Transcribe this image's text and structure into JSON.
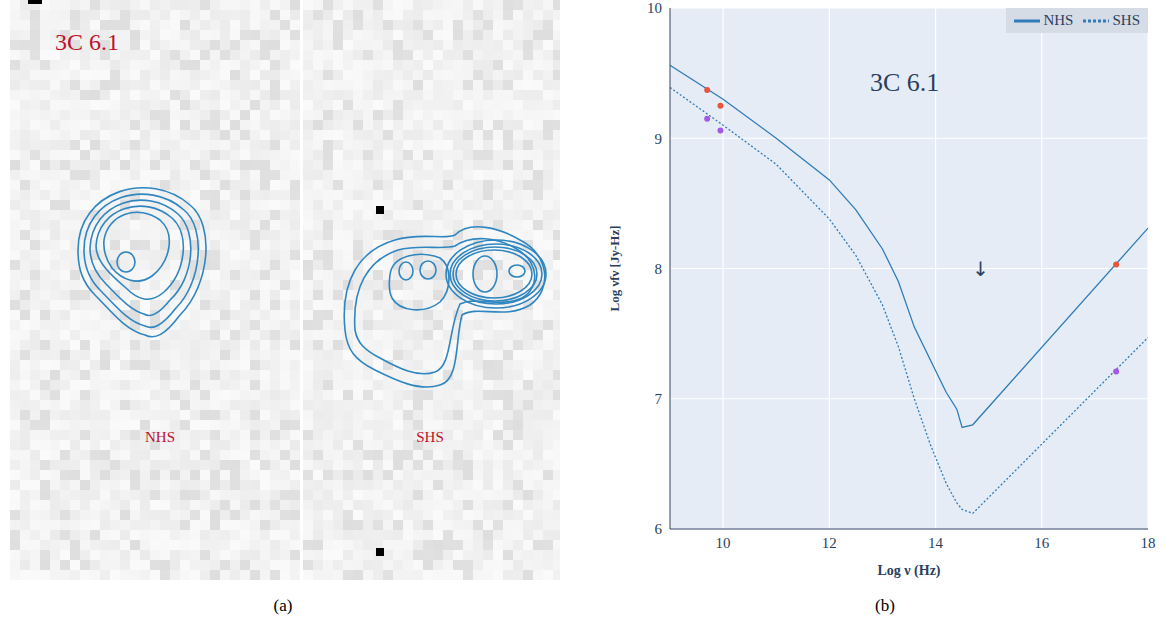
{
  "chart_data": [
    {
      "type": "image",
      "title": "3C 6.1",
      "annotations": [
        "NHS",
        "SHS"
      ],
      "caption": "(a)"
    },
    {
      "type": "line",
      "title": "3C 6.1",
      "caption": "(b)",
      "x_label": "Log ν (Hz)",
      "y_label": "Log νfν [Jy-Hz]",
      "xlim": [
        9,
        18
      ],
      "xticks": [
        10,
        12,
        14,
        16,
        18
      ],
      "ylim": [
        6,
        10
      ],
      "yticks": [
        6,
        7,
        8,
        9,
        10
      ],
      "grid": true,
      "legend": "top right",
      "series": [
        {
          "name": "NHS",
          "color": "#2f7cb8",
          "line_style": "solid",
          "x": [
            9,
            10,
            11,
            12,
            12.5,
            13,
            13.3,
            13.6,
            13.9,
            14.2,
            14.4,
            14.5,
            14.7,
            18
          ],
          "values": [
            9.56,
            9.3,
            9.0,
            8.68,
            8.45,
            8.15,
            7.9,
            7.55,
            7.3,
            7.05,
            6.92,
            6.78,
            6.8,
            8.31
          ],
          "data_points": {
            "color": "#e8553e",
            "x": [
              9.7,
              9.95,
              17.4
            ],
            "values": [
              9.37,
              9.25,
              8.03
            ]
          }
        },
        {
          "name": "SHS",
          "color": "#2f7cb8",
          "line_style": "dotted",
          "x": [
            9,
            10,
            11,
            12,
            12.5,
            13,
            13.3,
            13.6,
            13.9,
            14.2,
            14.4,
            14.5,
            14.7,
            18
          ],
          "values": [
            9.39,
            9.1,
            8.8,
            8.38,
            8.1,
            7.72,
            7.4,
            7.0,
            6.65,
            6.35,
            6.2,
            6.15,
            6.12,
            7.47
          ],
          "data_points": {
            "color": "#a25ae6",
            "x": [
              9.7,
              9.95,
              17.4
            ],
            "values": [
              9.15,
              9.06,
              7.21
            ]
          }
        }
      ],
      "annotations": [
        {
          "text": "↓",
          "x": 14.85,
          "y": 8.0
        }
      ]
    }
  ]
}
